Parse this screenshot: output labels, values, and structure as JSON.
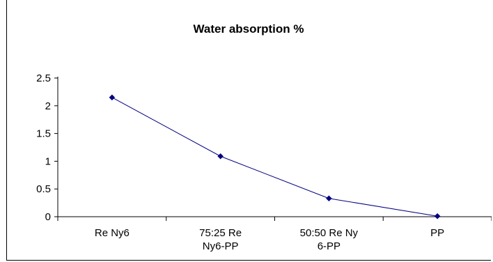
{
  "chart_data": {
    "type": "line",
    "title": "Water absorption %",
    "xlabel": "",
    "ylabel": "",
    "categories": [
      "Re Ny6",
      "75:25 Re Ny6-PP",
      "50:50 Re Ny 6-PP",
      "PP"
    ],
    "category_lines": [
      [
        "Re Ny6"
      ],
      [
        "75:25 Re",
        "Ny6-PP"
      ],
      [
        "50:50 Re Ny",
        "6-PP"
      ],
      [
        "PP"
      ]
    ],
    "series": [
      {
        "values": [
          2.15,
          1.09,
          0.33,
          0.01
        ],
        "color": "#000080",
        "marker": "diamond"
      }
    ],
    "ylim": [
      0,
      2.5
    ],
    "yticks": [
      "0",
      "0.5",
      "1",
      "1.5",
      "2",
      "2.5"
    ],
    "grid": false,
    "legend": "none"
  }
}
